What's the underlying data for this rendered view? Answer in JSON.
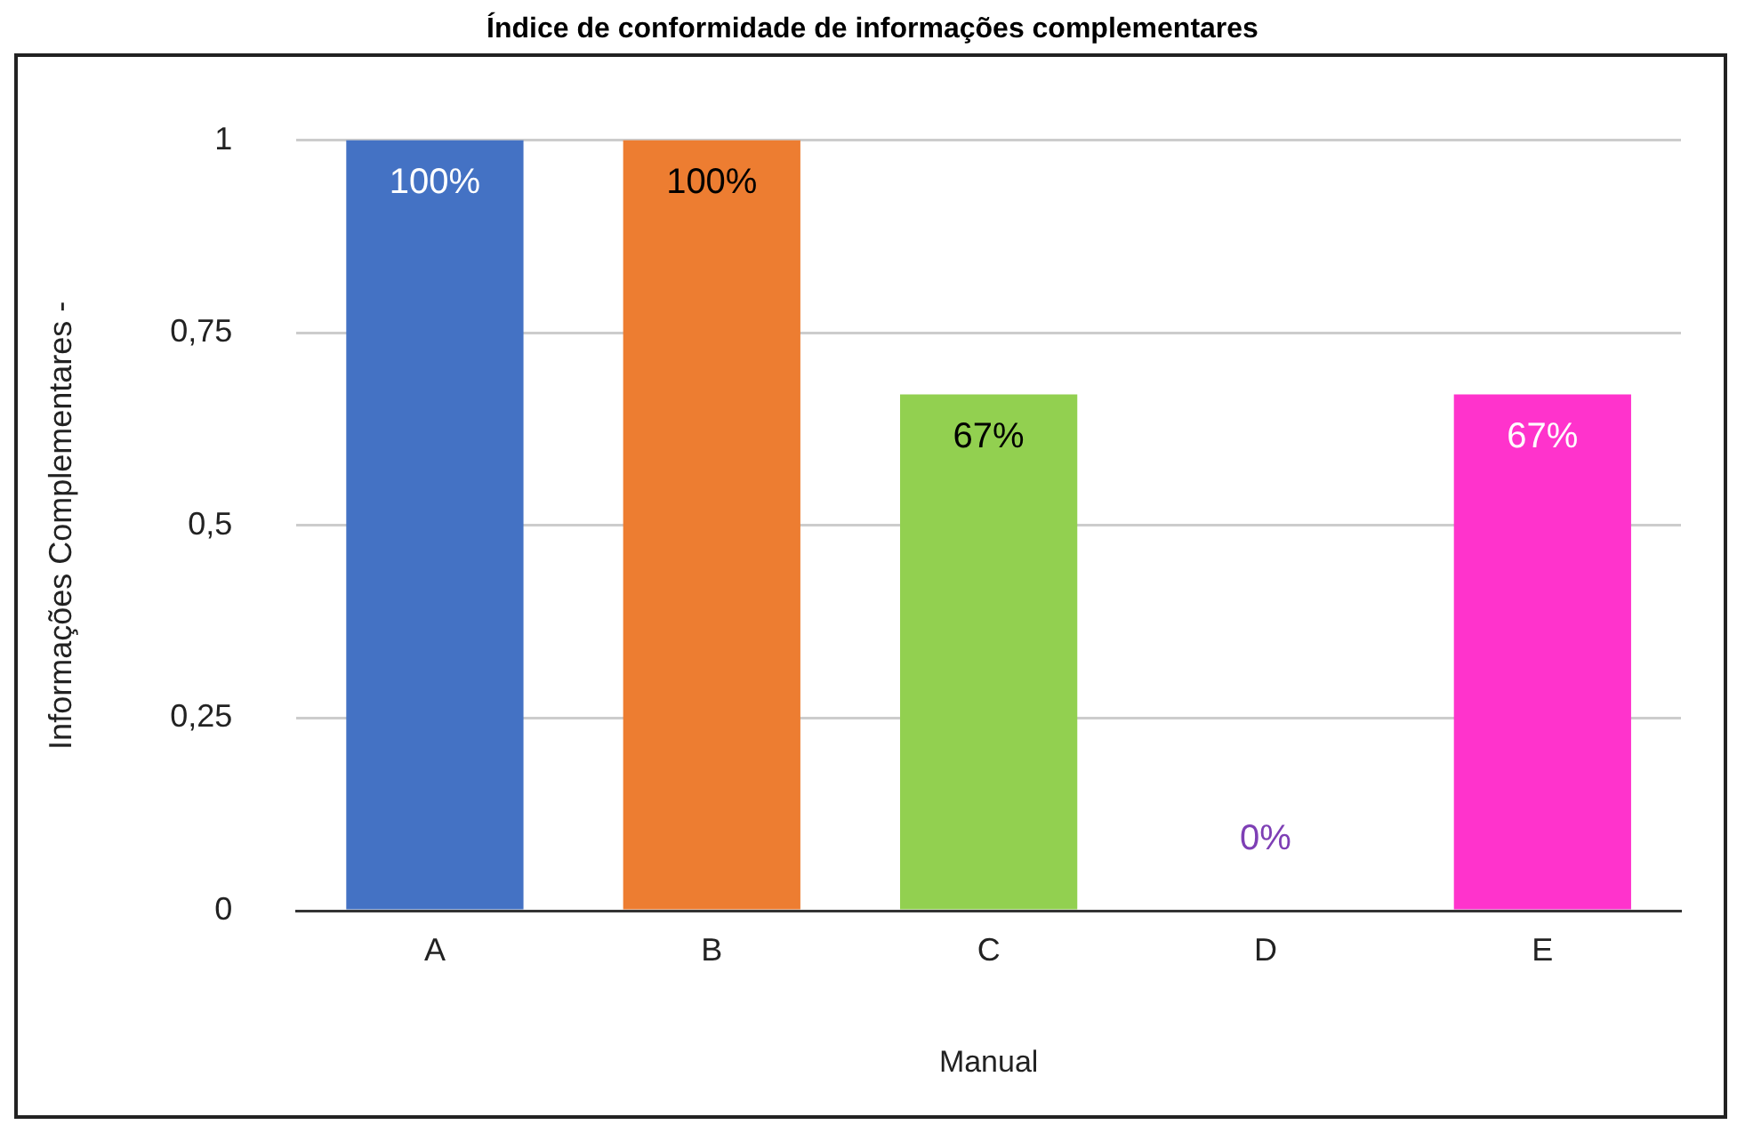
{
  "chart_data": {
    "type": "bar",
    "title": "Índice de conformidade de informações complementares",
    "xlabel": "Manual",
    "ylabel": "Informações Complementares -",
    "categories": [
      "A",
      "B",
      "C",
      "D",
      "E"
    ],
    "values": [
      1,
      1,
      0.67,
      0,
      0.67
    ],
    "colors": [
      "#4472c4",
      "#ed7d31",
      "#92d050",
      "#7e3fb5",
      "#ff33cc"
    ],
    "value_labels": [
      "100%",
      "100%",
      "67%",
      "0%",
      "67%"
    ],
    "ylim": [
      0,
      1
    ],
    "yticks": [
      0,
      {
        "value": 0.25,
        "label": "0,25"
      },
      {
        "value": 0.5,
        "label": "0,5"
      },
      {
        "value": 0.75,
        "label": "0,75"
      },
      1
    ],
    "grid": "y"
  }
}
